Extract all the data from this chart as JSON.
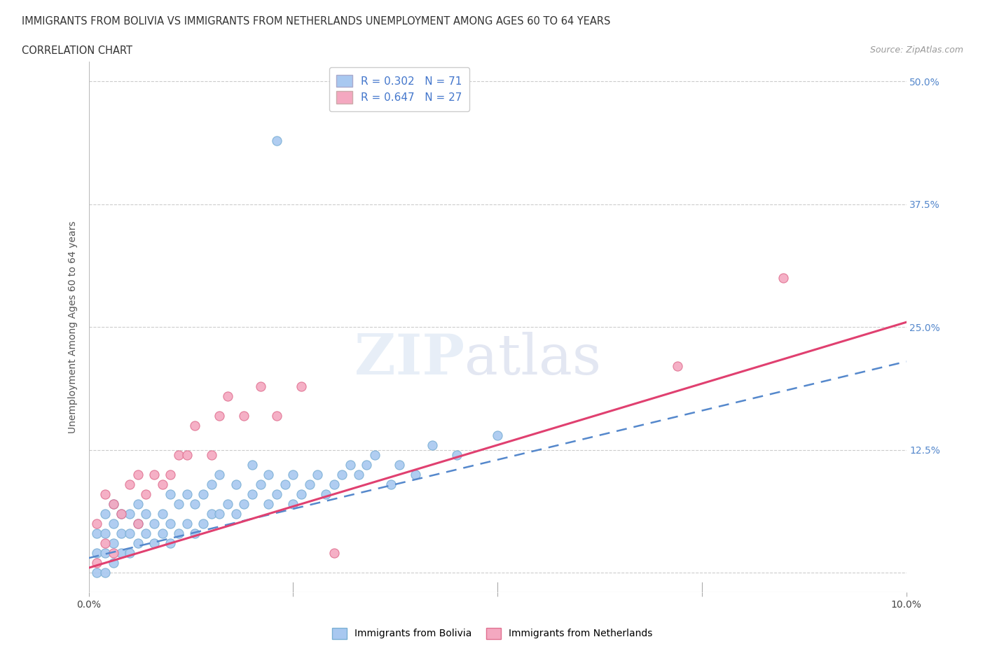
{
  "title_line1": "IMMIGRANTS FROM BOLIVIA VS IMMIGRANTS FROM NETHERLANDS UNEMPLOYMENT AMONG AGES 60 TO 64 YEARS",
  "title_line2": "CORRELATION CHART",
  "source_text": "Source: ZipAtlas.com",
  "ylabel": "Unemployment Among Ages 60 to 64 years",
  "xlim": [
    0.0,
    0.1
  ],
  "ylim": [
    -0.02,
    0.52
  ],
  "xticks": [
    0.0,
    0.025,
    0.05,
    0.075,
    0.1
  ],
  "xticklabels": [
    "0.0%",
    "",
    "",
    "",
    "10.0%"
  ],
  "ytick_positions": [
    0.0,
    0.125,
    0.25,
    0.375,
    0.5
  ],
  "ytick_labels": [
    "",
    "12.5%",
    "25.0%",
    "37.5%",
    "50.0%"
  ],
  "grid_color": "#cccccc",
  "background_color": "#ffffff",
  "legend_r1": "R = 0.302",
  "legend_n1": "N = 71",
  "legend_r2": "R = 0.647",
  "legend_n2": "N = 27",
  "bolivia_color": "#a8c8f0",
  "bolivia_edge_color": "#7aafd4",
  "netherlands_color": "#f4a8c0",
  "netherlands_edge_color": "#e07090",
  "line_bolivia_color": "#5588cc",
  "line_netherlands_color": "#e04070",
  "bolivia_points_x": [
    0.001,
    0.001,
    0.001,
    0.002,
    0.002,
    0.002,
    0.002,
    0.003,
    0.003,
    0.003,
    0.003,
    0.004,
    0.004,
    0.004,
    0.005,
    0.005,
    0.005,
    0.006,
    0.006,
    0.006,
    0.007,
    0.007,
    0.008,
    0.008,
    0.009,
    0.009,
    0.01,
    0.01,
    0.01,
    0.011,
    0.011,
    0.012,
    0.012,
    0.013,
    0.013,
    0.014,
    0.014,
    0.015,
    0.015,
    0.016,
    0.016,
    0.017,
    0.018,
    0.018,
    0.019,
    0.02,
    0.02,
    0.021,
    0.022,
    0.022,
    0.023,
    0.024,
    0.025,
    0.025,
    0.026,
    0.027,
    0.028,
    0.029,
    0.03,
    0.031,
    0.032,
    0.033,
    0.034,
    0.035,
    0.037,
    0.038,
    0.04,
    0.042,
    0.045,
    0.05,
    0.023
  ],
  "bolivia_points_y": [
    0.0,
    0.02,
    0.04,
    0.0,
    0.02,
    0.04,
    0.06,
    0.01,
    0.03,
    0.05,
    0.07,
    0.02,
    0.04,
    0.06,
    0.02,
    0.04,
    0.06,
    0.03,
    0.05,
    0.07,
    0.04,
    0.06,
    0.03,
    0.05,
    0.04,
    0.06,
    0.03,
    0.05,
    0.08,
    0.04,
    0.07,
    0.05,
    0.08,
    0.04,
    0.07,
    0.05,
    0.08,
    0.06,
    0.09,
    0.06,
    0.1,
    0.07,
    0.06,
    0.09,
    0.07,
    0.08,
    0.11,
    0.09,
    0.07,
    0.1,
    0.08,
    0.09,
    0.07,
    0.1,
    0.08,
    0.09,
    0.1,
    0.08,
    0.09,
    0.1,
    0.11,
    0.1,
    0.11,
    0.12,
    0.09,
    0.11,
    0.1,
    0.13,
    0.12,
    0.14,
    0.44
  ],
  "netherlands_points_x": [
    0.001,
    0.001,
    0.002,
    0.002,
    0.003,
    0.003,
    0.004,
    0.005,
    0.006,
    0.006,
    0.007,
    0.008,
    0.009,
    0.01,
    0.011,
    0.012,
    0.013,
    0.015,
    0.016,
    0.017,
    0.019,
    0.021,
    0.023,
    0.026,
    0.03,
    0.072,
    0.085
  ],
  "netherlands_points_y": [
    0.01,
    0.05,
    0.03,
    0.08,
    0.02,
    0.07,
    0.06,
    0.09,
    0.05,
    0.1,
    0.08,
    0.1,
    0.09,
    0.1,
    0.12,
    0.12,
    0.15,
    0.12,
    0.16,
    0.18,
    0.16,
    0.19,
    0.16,
    0.19,
    0.02,
    0.21,
    0.3
  ],
  "bolivia_line_x": [
    0.0,
    0.1
  ],
  "bolivia_line_y": [
    0.015,
    0.215
  ],
  "netherlands_line_x": [
    0.0,
    0.1
  ],
  "netherlands_line_y": [
    0.005,
    0.255
  ]
}
